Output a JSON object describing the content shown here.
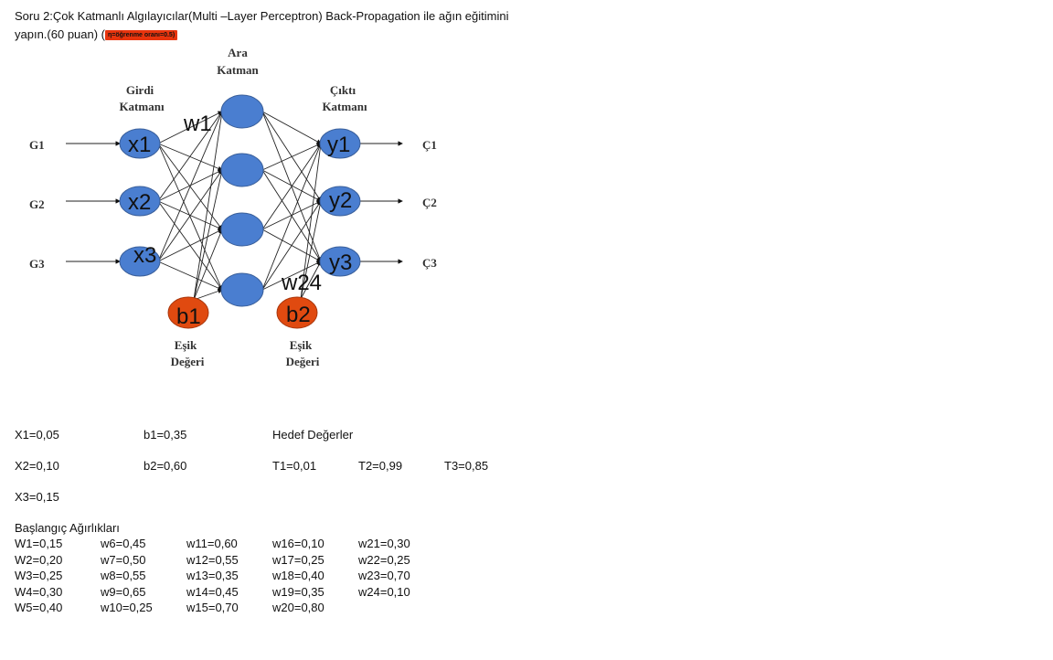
{
  "question": {
    "line1": "Soru 2:Çok Katmanlı Algılayıcılar(Multi –Layer Perceptron) Back-Propagation ile ağın eğitimini",
    "line2": "yapın.(60 puan) (",
    "highlight": "η=öğrenme oranı=0.5)",
    "highlight_color": "#e8340d"
  },
  "diagram": {
    "hidden_layer_label_top": "Ara",
    "hidden_layer_label": "Katman",
    "input_layer_label": [
      "Girdi",
      "Katmanı"
    ],
    "output_layer_label": [
      "Çıktı",
      "Katmanı"
    ],
    "inputs": [
      "G1",
      "G2",
      "G3"
    ],
    "input_nodes": [
      "x1",
      "x2",
      "x3"
    ],
    "output_nodes": [
      "y1",
      "y2",
      "y3"
    ],
    "outputs": [
      "Ç1",
      "Ç2",
      "Ç3"
    ],
    "bias_nodes": [
      "b1",
      "b2"
    ],
    "bias_label": [
      "Eşik",
      "Değeri"
    ],
    "weight_label_first": "w1",
    "weight_label_last": "w24",
    "node_color": "#4a7ed0",
    "bias_color": "#e04a10"
  },
  "values": {
    "x1": "X1=0,05",
    "x2": "X2=0,10",
    "x3": "X3=0,15",
    "b1": "b1=0,35",
    "b2": "b2=0,60",
    "targets_title": "Hedef Değerler",
    "t1": "T1=0,01",
    "t2": "T2=0,99",
    "t3": "T3=0,85"
  },
  "weights": {
    "title": "Başlangıç Ağırlıkları",
    "columns": [
      [
        "W1=0,15",
        "W2=0,20",
        "W3=0,25",
        "W4=0,30",
        "W5=0,40"
      ],
      [
        "w6=0,45",
        "w7=0,50",
        "w8=0,55",
        "w9=0,65",
        "w10=0,25"
      ],
      [
        "w11=0,60",
        "w12=0,55",
        "w13=0,35",
        "w14=0,45",
        "w15=0,70"
      ],
      [
        "w16=0,10",
        "w17=0,25",
        "w18=0,40",
        "w19=0,35",
        "w20=0,80"
      ],
      [
        "w21=0,30",
        "w22=0,25",
        "w23=0,70",
        "w24=0,10"
      ]
    ]
  }
}
